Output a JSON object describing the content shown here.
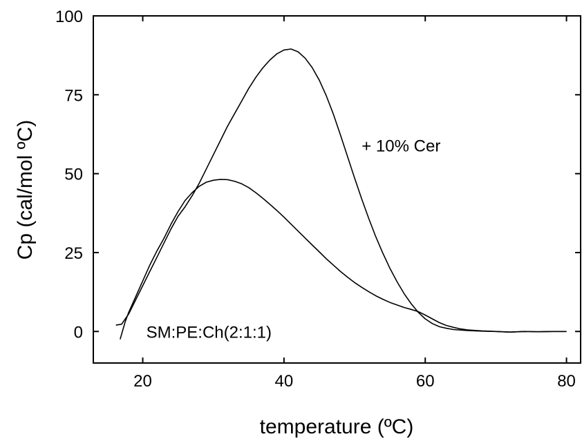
{
  "chart_data": {
    "type": "line",
    "xlabel": "temperature (ºC)",
    "ylabel": "Cp (cal/mol ºC)",
    "xlim": [
      13,
      82
    ],
    "ylim": [
      -10,
      100
    ],
    "xticks": [
      20,
      40,
      60,
      80
    ],
    "yticks": [
      0,
      25,
      50,
      75,
      100
    ],
    "grid": false,
    "line_color": "#000000",
    "annotations": [
      {
        "text": "+ 10% Cer",
        "x": 51,
        "y": 59
      },
      {
        "text": "SM:PE:Ch(2:1:1)",
        "x": 20.5,
        "y": 0
      }
    ],
    "series": [
      {
        "points": [
          [
            16.8,
            -2.5
          ],
          [
            17.5,
            3
          ],
          [
            18,
            6
          ],
          [
            19,
            11
          ],
          [
            20,
            16
          ],
          [
            21,
            21
          ],
          [
            22,
            25.5
          ],
          [
            23,
            29.5
          ],
          [
            24,
            34
          ],
          [
            25,
            38
          ],
          [
            26,
            41.5
          ],
          [
            27,
            44
          ],
          [
            28,
            46
          ],
          [
            29,
            47.3
          ],
          [
            30,
            47.9
          ],
          [
            31,
            48.2
          ],
          [
            32,
            48.1
          ],
          [
            33,
            47.6
          ],
          [
            34,
            46.8
          ],
          [
            35,
            45.6
          ],
          [
            36,
            44
          ],
          [
            37,
            42.2
          ],
          [
            38,
            40.3
          ],
          [
            39,
            38.3
          ],
          [
            40,
            36.2
          ],
          [
            41,
            34
          ],
          [
            42,
            31.8
          ],
          [
            43,
            29.6
          ],
          [
            44,
            27.4
          ],
          [
            45,
            25.2
          ],
          [
            46,
            23
          ],
          [
            47,
            21
          ],
          [
            48,
            19
          ],
          [
            49,
            17.2
          ],
          [
            50,
            15.5
          ],
          [
            51,
            14
          ],
          [
            52,
            12.6
          ],
          [
            53,
            11.3
          ],
          [
            54,
            10.2
          ],
          [
            55,
            9.2
          ],
          [
            56,
            8.4
          ],
          [
            57,
            7.6
          ],
          [
            58,
            7
          ],
          [
            59,
            6.3
          ],
          [
            60,
            5.2
          ],
          [
            61,
            4
          ],
          [
            62,
            2.8
          ],
          [
            63,
            1.9
          ],
          [
            64,
            1.3
          ],
          [
            65,
            0.8
          ],
          [
            66,
            0.5
          ],
          [
            68,
            0.2
          ],
          [
            70,
            0
          ],
          [
            72,
            -0.2
          ],
          [
            74,
            0
          ],
          [
            76,
            -0.1
          ],
          [
            78,
            0
          ],
          [
            80,
            0
          ]
        ]
      },
      {
        "points": [
          [
            16.2,
            2
          ],
          [
            17,
            2.3
          ],
          [
            18,
            5.5
          ],
          [
            19,
            10
          ],
          [
            20,
            14.5
          ],
          [
            21,
            19
          ],
          [
            22,
            23.5
          ],
          [
            23,
            28
          ],
          [
            24,
            32.5
          ],
          [
            25,
            36.5
          ],
          [
            26,
            39.5
          ],
          [
            27,
            43
          ],
          [
            28,
            47
          ],
          [
            29,
            51.5
          ],
          [
            30,
            56
          ],
          [
            31,
            60.5
          ],
          [
            32,
            65
          ],
          [
            33,
            69
          ],
          [
            34,
            73
          ],
          [
            35,
            77
          ],
          [
            36,
            80.5
          ],
          [
            37,
            83.5
          ],
          [
            38,
            86
          ],
          [
            39,
            88
          ],
          [
            40,
            89.2
          ],
          [
            41,
            89.5
          ],
          [
            42,
            88.6
          ],
          [
            43,
            86.6
          ],
          [
            44,
            83.6
          ],
          [
            45,
            79.6
          ],
          [
            46,
            74.6
          ],
          [
            47,
            68.8
          ],
          [
            48,
            62.2
          ],
          [
            49,
            55.4
          ],
          [
            50,
            48.6
          ],
          [
            51,
            42
          ],
          [
            52,
            35.8
          ],
          [
            53,
            30
          ],
          [
            54,
            24.8
          ],
          [
            55,
            20
          ],
          [
            56,
            15.8
          ],
          [
            57,
            12
          ],
          [
            58,
            8.8
          ],
          [
            59,
            6.1
          ],
          [
            60,
            4
          ],
          [
            61,
            2.5
          ],
          [
            62,
            1.5
          ],
          [
            63,
            1
          ],
          [
            64,
            0.6
          ],
          [
            66,
            0.3
          ],
          [
            68,
            0.1
          ],
          [
            70,
            0
          ],
          [
            72,
            -0.2
          ],
          [
            74,
            0
          ],
          [
            76,
            -0.1
          ],
          [
            78,
            0
          ],
          [
            80,
            0
          ]
        ]
      }
    ]
  }
}
